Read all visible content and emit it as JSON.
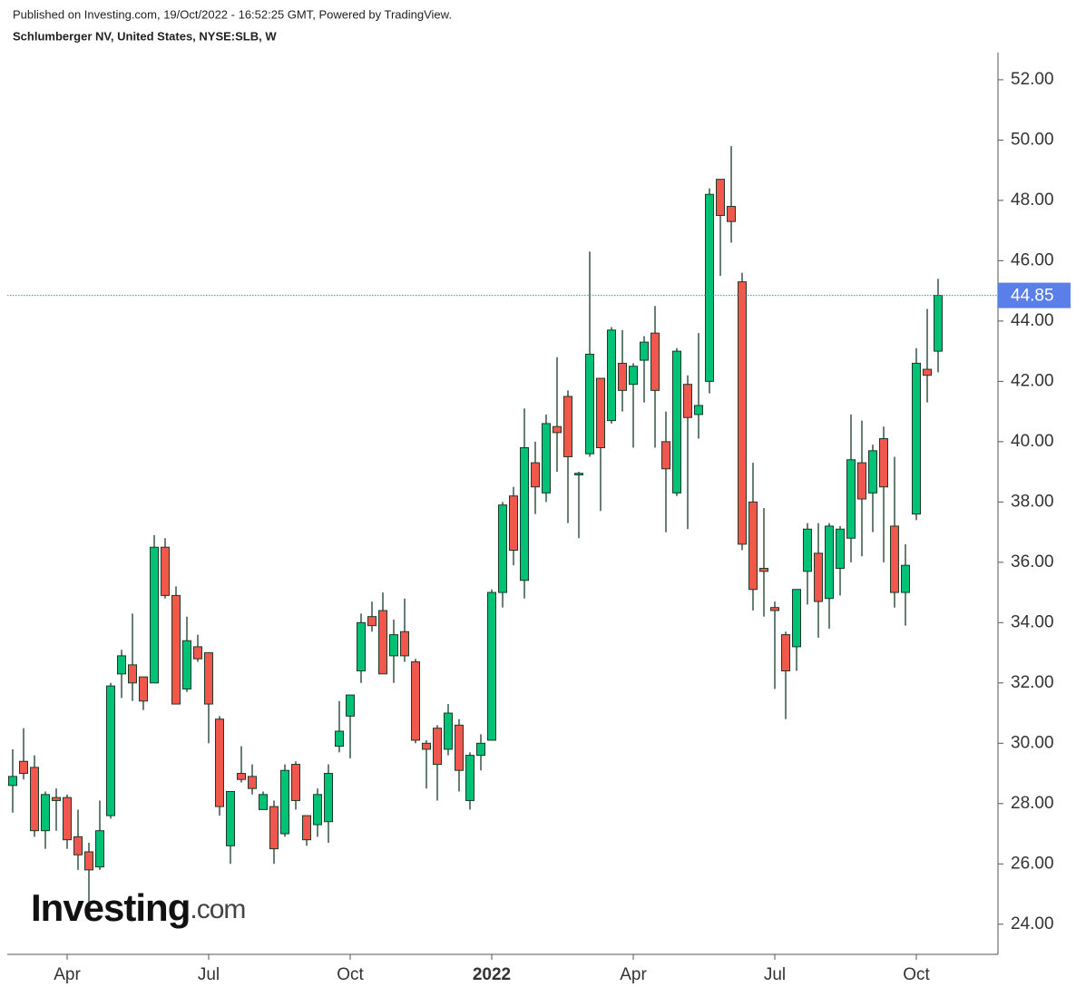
{
  "chart_data": {
    "type": "candlestick",
    "header": "Published on Investing.com, 19/Oct/2022 - 16:52:25 GMT, Powered by TradingView.",
    "title": "Schlumberger NV, United States, NYSE:SLB, W",
    "logo": [
      "Investing",
      ".com"
    ],
    "categories": [
      null,
      null,
      null,
      null,
      null,
      "Apr",
      null,
      null,
      null,
      null,
      null,
      null,
      null,
      null,
      null,
      null,
      null,
      null,
      "Jul",
      null,
      null,
      null,
      null,
      null,
      null,
      null,
      null,
      null,
      null,
      null,
      null,
      "Oct",
      null,
      null,
      null,
      null,
      null,
      null,
      null,
      null,
      null,
      null,
      null,
      null,
      "2022",
      null,
      null,
      null,
      null,
      null,
      null,
      null,
      null,
      null,
      null,
      null,
      null,
      "Apr",
      null,
      null,
      null,
      null,
      null,
      null,
      null,
      null,
      null,
      null,
      null,
      null,
      "Jul",
      null,
      null,
      null,
      null,
      null,
      null,
      null,
      null,
      null,
      null,
      null,
      null,
      "Oct",
      null,
      null
    ],
    "open": [
      28.6,
      29.4,
      29.2,
      27.1,
      28.2,
      28.2,
      26.9,
      26.4,
      25.9,
      27.6,
      32.3,
      32.6,
      32.2,
      32.0,
      36.5,
      34.9,
      31.8,
      33.2,
      33.0,
      30.8,
      26.6,
      29.0,
      28.9,
      27.8,
      27.9,
      27.0,
      29.3,
      27.6,
      27.3,
      27.4,
      29.9,
      30.9,
      32.4,
      34.2,
      34.4,
      32.9,
      33.7,
      32.7,
      30.0,
      30.5,
      29.8,
      30.6,
      28.1,
      29.6,
      30.1,
      35.0,
      38.2,
      35.4,
      39.3,
      38.3,
      40.5,
      41.5,
      38.9,
      39.6,
      42.1,
      40.7,
      42.6,
      41.9,
      42.7,
      43.6,
      40.0,
      38.3,
      41.9,
      40.9,
      42.0,
      48.7,
      47.8,
      45.3,
      38.0,
      35.8,
      34.5,
      33.6,
      33.2,
      35.7,
      36.3,
      34.8,
      35.8,
      36.8,
      39.3,
      38.3,
      40.1,
      37.2,
      35.0,
      37.6,
      42.4,
      43.0
    ],
    "high": [
      29.8,
      30.5,
      29.6,
      28.4,
      28.5,
      28.3,
      27.8,
      26.7,
      28.1,
      32.0,
      33.1,
      34.3,
      32.2,
      36.9,
      36.8,
      35.2,
      34.2,
      33.6,
      33.0,
      30.9,
      28.4,
      29.9,
      29.3,
      28.4,
      28.1,
      29.3,
      29.4,
      27.6,
      28.5,
      29.3,
      31.4,
      31.6,
      34.3,
      34.7,
      35.0,
      34.1,
      34.8,
      32.8,
      30.1,
      30.6,
      31.3,
      30.8,
      29.7,
      30.3,
      35.1,
      38.0,
      38.5,
      41.1,
      40.0,
      40.9,
      42.8,
      41.7,
      39.0,
      46.3,
      42.1,
      43.8,
      43.7,
      42.6,
      43.5,
      44.5,
      41.0,
      43.1,
      42.2,
      43.6,
      48.4,
      48.7,
      49.8,
      45.6,
      39.3,
      37.8,
      34.7,
      33.7,
      35.1,
      37.3,
      37.3,
      37.3,
      37.2,
      40.9,
      40.7,
      39.9,
      40.5,
      39.5,
      36.6,
      43.1,
      44.4,
      45.4
    ],
    "low": [
      27.7,
      28.8,
      26.9,
      26.5,
      27.1,
      26.5,
      25.8,
      24.7,
      25.8,
      27.5,
      31.5,
      31.4,
      31.1,
      32.0,
      34.8,
      31.3,
      31.7,
      32.7,
      30.0,
      27.6,
      26.0,
      28.7,
      28.3,
      27.8,
      26.0,
      26.9,
      27.8,
      26.6,
      26.9,
      26.7,
      29.7,
      29.5,
      32.0,
      33.7,
      32.3,
      32.0,
      32.7,
      30.0,
      28.5,
      28.1,
      29.6,
      28.4,
      27.8,
      29.1,
      30.1,
      34.5,
      35.9,
      34.8,
      37.6,
      38.0,
      39.0,
      37.3,
      36.8,
      39.5,
      37.7,
      40.6,
      41.0,
      39.8,
      41.3,
      39.8,
      37.0,
      38.2,
      37.1,
      40.1,
      41.6,
      45.5,
      46.6,
      36.4,
      34.4,
      34.2,
      31.8,
      30.8,
      32.4,
      34.6,
      33.5,
      33.8,
      34.9,
      36.0,
      36.2,
      37.0,
      36.0,
      34.5,
      33.9,
      37.4,
      41.3,
      42.3
    ],
    "close": [
      28.9,
      29.0,
      27.1,
      28.3,
      28.1,
      26.8,
      26.3,
      25.8,
      27.1,
      31.9,
      32.9,
      32.0,
      31.4,
      36.5,
      34.9,
      31.3,
      33.4,
      32.8,
      31.3,
      27.9,
      28.4,
      28.8,
      28.5,
      28.3,
      26.5,
      29.1,
      28.1,
      26.8,
      28.3,
      29.0,
      30.4,
      31.6,
      34.0,
      33.9,
      32.3,
      33.6,
      32.9,
      30.1,
      29.8,
      29.3,
      31.0,
      29.1,
      29.6,
      30.0,
      35.0,
      37.9,
      36.4,
      39.8,
      38.5,
      40.6,
      40.3,
      39.5,
      38.95,
      42.9,
      39.8,
      43.7,
      41.7,
      42.5,
      43.3,
      41.7,
      39.1,
      43.0,
      40.8,
      41.2,
      48.2,
      47.5,
      47.3,
      36.6,
      35.1,
      35.7,
      34.4,
      32.4,
      35.1,
      37.1,
      34.7,
      37.2,
      37.1,
      39.4,
      38.1,
      39.7,
      38.5,
      35.0,
      35.9,
      42.6,
      42.2,
      44.85
    ],
    "up_color": "#00c176",
    "down_color": "#f0584e",
    "wick_color": "#1a3a2a",
    "last_price": 44.85,
    "last_price_color": "#5b7fe8",
    "ylim": [
      23.0,
      52.9
    ],
    "yticks": [
      {
        "value": 24,
        "label": "24.00"
      },
      {
        "value": 26,
        "label": "26.00"
      },
      {
        "value": 28,
        "label": "28.00"
      },
      {
        "value": 30,
        "label": "30.00"
      },
      {
        "value": 32,
        "label": "32.00"
      },
      {
        "value": 34,
        "label": "34.00"
      },
      {
        "value": 36,
        "label": "36.00"
      },
      {
        "value": 38,
        "label": "38.00"
      },
      {
        "value": 40,
        "label": "40.00"
      },
      {
        "value": 42,
        "label": "42.00"
      },
      {
        "value": 44,
        "label": "44.00"
      },
      {
        "value": 46,
        "label": "46.00"
      },
      {
        "value": 48,
        "label": "48.00"
      },
      {
        "value": 50,
        "label": "50.00"
      },
      {
        "value": 52,
        "label": "52.00"
      }
    ],
    "grid": false
  }
}
